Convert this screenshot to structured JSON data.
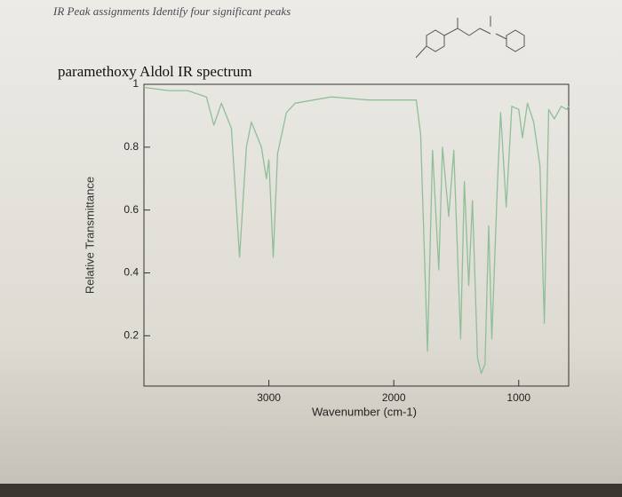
{
  "chart_data": {
    "type": "line",
    "note_text": "IR Peak assignments Identify four significant peaks",
    "title": "paramethoxy Aldol IR spectrum",
    "xlabel": "Wavenumber (cm-1)",
    "ylabel": "Relative Transmittance",
    "xlim": [
      4000,
      600
    ],
    "xticks": [
      3000,
      2000,
      1000
    ],
    "ylim": [
      0.04,
      1
    ],
    "yticks": [
      0.2,
      0.4,
      0.6,
      0.8,
      1
    ],
    "grid": false,
    "series": [
      {
        "name": "paramethoxy Aldol",
        "color": "#8fbf98",
        "x": [
          4000,
          3800,
          3650,
          3500,
          3440,
          3380,
          3300,
          3235,
          3180,
          3140,
          3060,
          3020,
          3000,
          2965,
          2930,
          2860,
          2790,
          2500,
          2200,
          1820,
          1785,
          1730,
          1690,
          1640,
          1610,
          1560,
          1520,
          1465,
          1435,
          1400,
          1370,
          1330,
          1300,
          1270,
          1240,
          1215,
          1170,
          1145,
          1100,
          1055,
          1000,
          970,
          930,
          880,
          830,
          795,
          760,
          715,
          660,
          615,
          600
        ],
        "values": [
          0.99,
          0.98,
          0.98,
          0.96,
          0.87,
          0.94,
          0.86,
          0.45,
          0.8,
          0.88,
          0.8,
          0.7,
          0.76,
          0.45,
          0.78,
          0.91,
          0.94,
          0.96,
          0.95,
          0.95,
          0.84,
          0.15,
          0.79,
          0.41,
          0.8,
          0.58,
          0.79,
          0.19,
          0.69,
          0.36,
          0.63,
          0.13,
          0.08,
          0.11,
          0.55,
          0.19,
          0.69,
          0.91,
          0.61,
          0.93,
          0.92,
          0.83,
          0.94,
          0.88,
          0.74,
          0.24,
          0.92,
          0.89,
          0.93,
          0.92,
          0.93
        ]
      }
    ]
  }
}
